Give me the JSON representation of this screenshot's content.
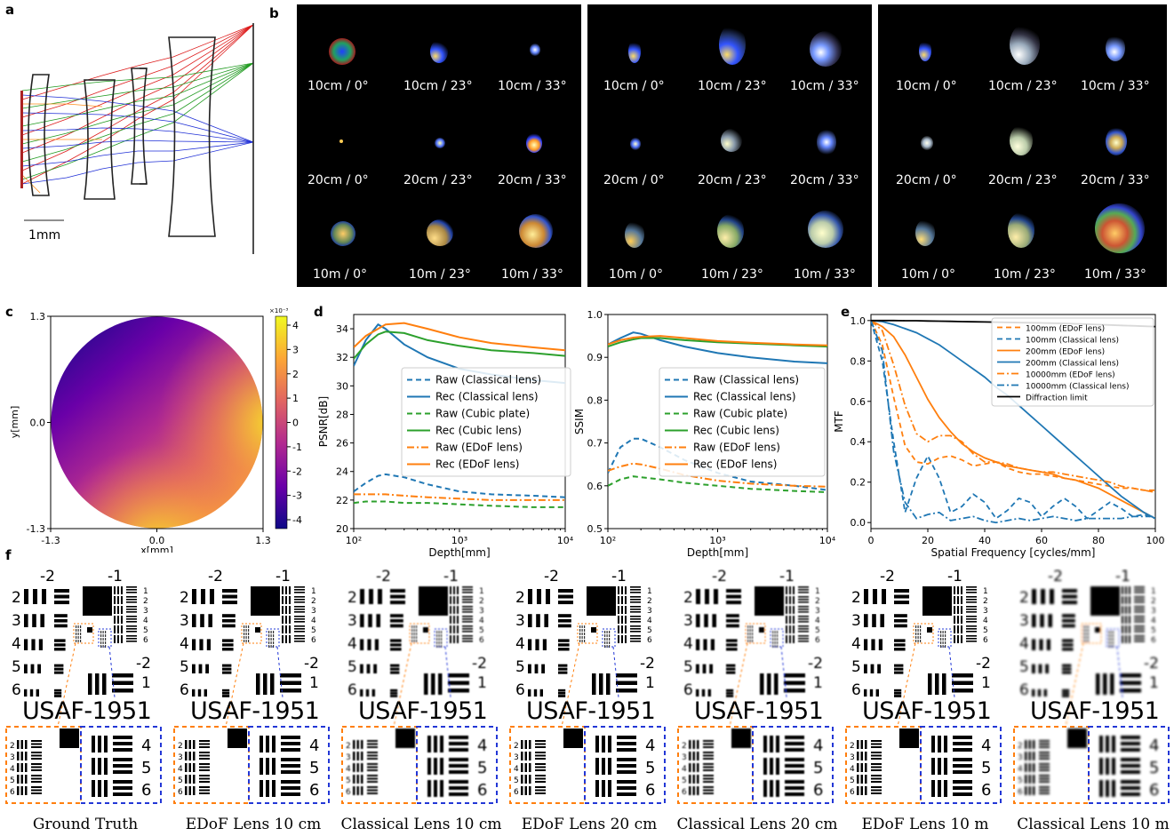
{
  "panels": {
    "a": "a",
    "b": "b",
    "c": "c",
    "d": "d",
    "e": "e",
    "f": "f"
  },
  "panel_a": {
    "scale_label": "1mm"
  },
  "panel_b": {
    "blocks": [
      {
        "labels": [
          "10cm / 0°",
          "10cm / 23°",
          "10cm / 33°",
          "20cm / 0°",
          "20cm / 23°",
          "20cm / 33°",
          "10m / 0°",
          "10m / 23°",
          "10m / 33°"
        ]
      },
      {
        "labels": [
          "10cm / 0°",
          "10cm / 23°",
          "10cm / 33°",
          "20cm / 0°",
          "20cm / 23°",
          "20cm / 33°",
          "10m / 0°",
          "10m / 23°",
          "10m / 33°"
        ]
      },
      {
        "labels": [
          "10cm / 0°",
          "10cm / 23°",
          "10cm / 33°",
          "20cm / 0°",
          "20cm / 23°",
          "20cm / 33°",
          "10m / 0°",
          "10m / 23°",
          "10m / 33°"
        ]
      }
    ]
  },
  "chart_data": [
    {
      "id": "c",
      "type": "heatmap",
      "xlabel": "x[mm]",
      "ylabel": "y[mm]",
      "xticks": [
        "-1.3",
        "0.0",
        "1.3"
      ],
      "yticks": [
        "1.3",
        "0.0",
        "-1.3"
      ],
      "colorbar": {
        "exponent": "×10⁻³",
        "ticks": [
          "4",
          "3",
          "2",
          "1",
          "0",
          "-1",
          "-2",
          "-3",
          "-4"
        ],
        "colors": [
          "#0d0887",
          "#6a00a8",
          "#b12a90",
          "#e16462",
          "#fca636",
          "#f0f921"
        ]
      }
    },
    {
      "id": "d-psnr",
      "type": "line",
      "xlabel": "Depth[mm]",
      "ylabel": "PSNR[dB]",
      "xscale": "log",
      "xlim": [
        100,
        10000
      ],
      "ylim": [
        20,
        35
      ],
      "yticks": [
        "34",
        "32",
        "30",
        "28",
        "26",
        "24",
        "22",
        "20"
      ],
      "xticks": [
        "10²",
        "10³",
        "10⁴"
      ],
      "x": [
        100,
        130,
        170,
        200,
        300,
        500,
        1000,
        2000,
        5000,
        10000
      ],
      "series": [
        {
          "name": "Raw (Classical lens)",
          "color": "#1f77b4",
          "dash": "6,4",
          "values": [
            22.6,
            23.2,
            23.7,
            23.8,
            23.6,
            23.1,
            22.6,
            22.4,
            22.3,
            22.2
          ]
        },
        {
          "name": "Rec  (Classical lens)",
          "color": "#1f77b4",
          "dash": "",
          "values": [
            31.4,
            33.2,
            34.3,
            34.0,
            32.9,
            32.0,
            31.2,
            30.8,
            30.4,
            30.2
          ]
        },
        {
          "name": "Raw (Cubic plate)",
          "color": "#2ca02c",
          "dash": "6,4",
          "values": [
            21.8,
            21.9,
            21.9,
            21.9,
            21.8,
            21.8,
            21.7,
            21.6,
            21.5,
            21.5
          ]
        },
        {
          "name": "Rec  (Cubic lens)",
          "color": "#2ca02c",
          "dash": "",
          "values": [
            31.9,
            32.9,
            33.6,
            33.8,
            33.7,
            33.2,
            32.8,
            32.5,
            32.3,
            32.1
          ]
        },
        {
          "name": "Raw (EDoF lens)",
          "color": "#ff7f0e",
          "dash": "8,3,2,3",
          "values": [
            22.4,
            22.4,
            22.4,
            22.4,
            22.3,
            22.2,
            22.1,
            22.0,
            22.0,
            22.0
          ]
        },
        {
          "name": "Rec  (EDoF lens)",
          "color": "#ff7f0e",
          "dash": "",
          "values": [
            32.7,
            33.5,
            34.0,
            34.3,
            34.4,
            34.0,
            33.4,
            33.0,
            32.7,
            32.5
          ]
        }
      ]
    },
    {
      "id": "d-ssim",
      "type": "line",
      "xlabel": "Depth[mm]",
      "ylabel": "SSIM",
      "xscale": "log",
      "xlim": [
        100,
        10000
      ],
      "ylim": [
        0.5,
        1.0
      ],
      "yticks": [
        "1.0",
        "0.9",
        "0.8",
        "0.7",
        "0.6",
        "0.5"
      ],
      "xticks": [
        "10²",
        "10³",
        "10⁴"
      ],
      "x": [
        100,
        130,
        170,
        200,
        300,
        500,
        1000,
        2000,
        5000,
        10000
      ],
      "series": [
        {
          "name": "Raw (Classical lens)",
          "color": "#1f77b4",
          "dash": "6,4",
          "values": [
            0.63,
            0.69,
            0.71,
            0.71,
            0.69,
            0.66,
            0.63,
            0.61,
            0.6,
            0.59
          ]
        },
        {
          "name": "Rec  (Classical lens)",
          "color": "#1f77b4",
          "dash": "",
          "values": [
            0.93,
            0.945,
            0.958,
            0.955,
            0.94,
            0.925,
            0.91,
            0.9,
            0.89,
            0.886
          ]
        },
        {
          "name": "Raw (Cubic plate)",
          "color": "#2ca02c",
          "dash": "6,4",
          "values": [
            0.6,
            0.615,
            0.622,
            0.62,
            0.615,
            0.607,
            0.6,
            0.593,
            0.588,
            0.585
          ]
        },
        {
          "name": "Rec  (Cubic lens)",
          "color": "#2ca02c",
          "dash": "",
          "values": [
            0.925,
            0.935,
            0.942,
            0.945,
            0.945,
            0.94,
            0.935,
            0.932,
            0.928,
            0.925
          ]
        },
        {
          "name": "Raw (EDoF lens)",
          "color": "#ff7f0e",
          "dash": "8,3,2,3",
          "values": [
            0.635,
            0.645,
            0.652,
            0.65,
            0.64,
            0.625,
            0.612,
            0.605,
            0.6,
            0.598
          ]
        },
        {
          "name": "Rec  (EDoF lens)",
          "color": "#ff7f0e",
          "dash": "",
          "values": [
            0.93,
            0.94,
            0.946,
            0.948,
            0.95,
            0.945,
            0.938,
            0.934,
            0.93,
            0.928
          ]
        }
      ]
    },
    {
      "id": "e",
      "type": "line",
      "xlabel": "Spatial Frequency [cycles/mm]",
      "ylabel": "MTF",
      "xlim": [
        0,
        100
      ],
      "ylim": [
        -0.03,
        1.03
      ],
      "yticks": [
        "1.0",
        "0.8",
        "0.6",
        "0.4",
        "0.2",
        "0.0"
      ],
      "xticks": [
        "0",
        "20",
        "40",
        "60",
        "80",
        "100"
      ],
      "x": [
        0,
        4,
        8,
        12,
        16,
        20,
        24,
        28,
        32,
        36,
        40,
        44,
        48,
        52,
        56,
        60,
        64,
        68,
        72,
        76,
        80,
        84,
        88,
        92,
        96,
        100
      ],
      "series": [
        {
          "name": "100mm (EDoF lens)",
          "color": "#ff7f0e",
          "dash": "6,4",
          "values": [
            1.0,
            0.88,
            0.62,
            0.38,
            0.3,
            0.29,
            0.32,
            0.33,
            0.31,
            0.28,
            0.29,
            0.3,
            0.27,
            0.25,
            0.24,
            0.24,
            0.23,
            0.22,
            0.21,
            0.2,
            0.19,
            0.18,
            0.17,
            0.17,
            0.16,
            0.16
          ]
        },
        {
          "name": "100mm (Classical lens)",
          "color": "#1f77b4",
          "dash": "6,4",
          "values": [
            1.0,
            0.8,
            0.4,
            0.05,
            0.22,
            0.33,
            0.22,
            0.05,
            0.08,
            0.14,
            0.1,
            0.02,
            0.06,
            0.12,
            0.1,
            0.03,
            0.08,
            0.12,
            0.08,
            0.02,
            0.06,
            0.1,
            0.07,
            0.03,
            0.04,
            0.02
          ]
        },
        {
          "name": "200mm (EDoF lens)",
          "color": "#ff7f0e",
          "dash": "",
          "values": [
            1.0,
            0.97,
            0.92,
            0.83,
            0.72,
            0.61,
            0.52,
            0.45,
            0.39,
            0.35,
            0.32,
            0.3,
            0.28,
            0.27,
            0.26,
            0.25,
            0.24,
            0.22,
            0.21,
            0.19,
            0.17,
            0.14,
            0.11,
            0.08,
            0.05,
            0.02
          ]
        },
        {
          "name": "200mm (Classical lens)",
          "color": "#1f77b4",
          "dash": "",
          "values": [
            1.0,
            0.995,
            0.98,
            0.96,
            0.94,
            0.91,
            0.88,
            0.84,
            0.8,
            0.76,
            0.72,
            0.67,
            0.63,
            0.58,
            0.53,
            0.48,
            0.43,
            0.38,
            0.33,
            0.28,
            0.23,
            0.18,
            0.13,
            0.09,
            0.05,
            0.02
          ]
        },
        {
          "name": "10000mm (EDoF lens)",
          "color": "#ff7f0e",
          "dash": "8,3,2,3",
          "values": [
            1.0,
            0.95,
            0.78,
            0.58,
            0.44,
            0.4,
            0.43,
            0.43,
            0.4,
            0.34,
            0.3,
            0.3,
            0.29,
            0.27,
            0.26,
            0.25,
            0.25,
            0.24,
            0.23,
            0.22,
            0.21,
            0.2,
            0.18,
            0.17,
            0.16,
            0.15
          ]
        },
        {
          "name": "10000mm (Classical lens)",
          "color": "#1f77b4",
          "dash": "8,3,2,3",
          "values": [
            1.0,
            0.85,
            0.35,
            0.1,
            0.02,
            0.04,
            0.05,
            0.01,
            0.02,
            0.03,
            0.01,
            0.0,
            0.01,
            0.02,
            0.01,
            0.02,
            0.03,
            0.02,
            0.01,
            0.02,
            0.02,
            0.02,
            0.02,
            0.03,
            0.03,
            0.03
          ]
        },
        {
          "name": "Diffraction limit",
          "color": "#000000",
          "dash": "",
          "values": [
            1.0,
            1.0,
            1.0,
            0.999,
            0.999,
            0.998,
            0.997,
            0.996,
            0.995,
            0.994,
            0.993,
            0.992,
            0.991,
            0.99,
            0.989,
            0.988,
            0.987,
            0.986,
            0.984,
            0.982,
            0.98,
            0.978,
            0.976,
            0.974,
            0.972,
            0.97
          ]
        }
      ]
    }
  ],
  "panel_f": {
    "title": "USAF-1951",
    "group_labels": {
      "m2": "-2",
      "m1": "-1",
      "m2b": "-2",
      "one": "1"
    },
    "left_numbers": [
      "2",
      "3",
      "4",
      "5",
      "6"
    ],
    "small_numbers": [
      "1",
      "2",
      "3",
      "4",
      "5",
      "6"
    ],
    "zoom_numbers": [
      "4",
      "5",
      "6"
    ],
    "zoom_left_numbers": [
      "2",
      "3",
      "4",
      "5",
      "6"
    ],
    "captions": [
      "Ground Truth",
      "EDoF Lens 10 cm",
      "Classical Lens 10 cm",
      "EDoF Lens 20 cm",
      "Classical Lens 20 cm",
      "EDoF Lens 10 m",
      "Classical Lens 10 m"
    ],
    "zoom_colors": {
      "left": "#ff7f0e",
      "right": "#2337d6"
    }
  }
}
